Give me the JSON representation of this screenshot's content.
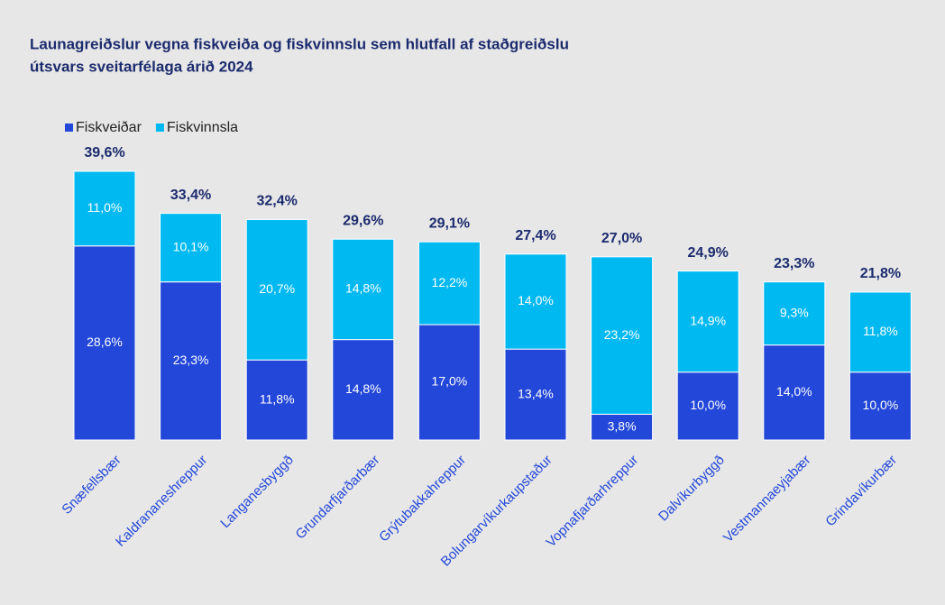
{
  "chart_data": {
    "type": "stacked_bar",
    "title": [
      "Launagreiðslur vegna fiskveiða og fiskvinnslu sem hlutfall af staðgreiðslu",
      "útsvars sveitarfélaga árið 2024"
    ],
    "categories": [
      "Snæfellsbær",
      "Kaldrananeshreppur",
      "Langanesbyggð",
      "Grundarfjarðarbær",
      "Grýtubakkahreppur",
      "Bolungarvíkurkaupstaður",
      "Vopnafjarðarhreppur",
      "Dalvíkurbyggð",
      "Vestmannaeyjabær",
      "Grindavíkurbær"
    ],
    "series": [
      {
        "name": "Fiskveiðar",
        "color": "#2347d9",
        "values": [
          28.6,
          23.3,
          11.8,
          14.8,
          17.0,
          13.4,
          3.8,
          10.0,
          14.0,
          10.0
        ],
        "value_labels": [
          "28,6%",
          "23,3%",
          "11,8%",
          "14,8%",
          "17,0%",
          "13,4%",
          "3,8%",
          "10,0%",
          "14,0%",
          "10,0%"
        ]
      },
      {
        "name": "Fiskvinnsla",
        "color": "#00b9f1",
        "values": [
          11.0,
          10.1,
          20.7,
          14.8,
          12.2,
          14.0,
          23.2,
          14.9,
          9.3,
          11.8
        ],
        "value_labels": [
          "11,0%",
          "10,1%",
          "20,7%",
          "14,8%",
          "12,2%",
          "14,0%",
          "23,2%",
          "14,9%",
          "9,3%",
          "11,8%"
        ]
      }
    ],
    "totals": [
      39.6,
      33.4,
      32.4,
      29.6,
      29.1,
      27.4,
      27.0,
      24.9,
      23.3,
      21.8
    ],
    "total_labels": [
      "39,6%",
      "33,4%",
      "32,4%",
      "29,6%",
      "29,1%",
      "27,4%",
      "27,0%",
      "24,9%",
      "23,3%",
      "21,8%"
    ],
    "legend": "top-left"
  }
}
